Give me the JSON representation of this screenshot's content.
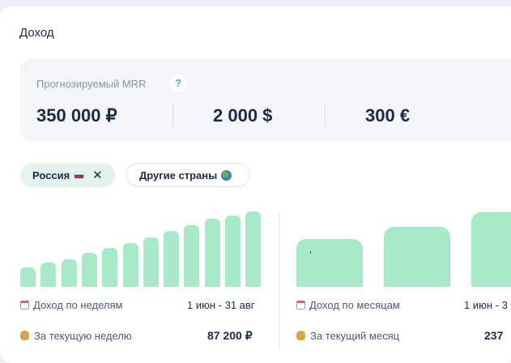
{
  "section_title": "Доход",
  "mrr": {
    "label": "Прогнозируемый MRR",
    "help": "?",
    "rub": "350 000 ₽",
    "usd": "2 000 $",
    "eur": "300 €"
  },
  "filters": {
    "active_label": "Россия",
    "active_close": "✕",
    "other_label": "Другие страны"
  },
  "weekly": {
    "label": "Доход по неделям",
    "range": "1 июн - 31 авг",
    "current_label": "За текущую неделю",
    "current_value": "87 200 ₽",
    "bar_levels": [
      0.26,
      0.32,
      0.37,
      0.45,
      0.52,
      0.58,
      0.66,
      0.74,
      0.82,
      0.9,
      0.95,
      1.0
    ]
  },
  "monthly": {
    "label": "Доход по месяцам",
    "range": "1 июн - 3",
    "current_label": "За текущий месяц",
    "current_value": "237",
    "bar_levels": [
      0.64,
      0.8,
      1.0
    ]
  },
  "colors": {
    "bar": "#a8e9c8",
    "chip_active": "#e3f4ec",
    "help_icon": "#5aa0d8",
    "text_dark": "#1c2a4a"
  }
}
